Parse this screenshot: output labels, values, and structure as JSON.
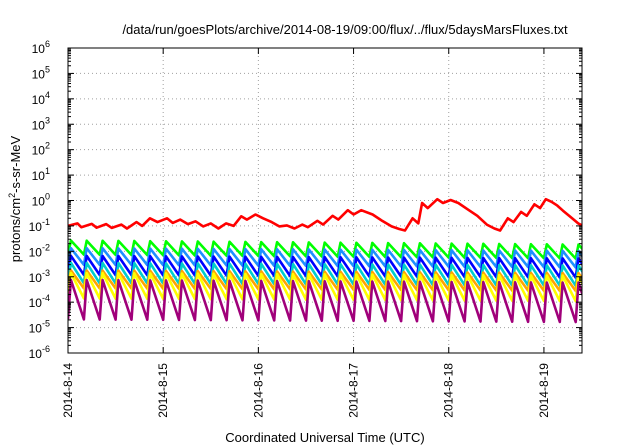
{
  "chart_data": {
    "type": "line",
    "title": "/data/run/goesPlots/archive/2014-08-19/09:00/flux/../flux/5daysMarsFluxes.txt",
    "xlabel": "Coordinated Universal Time (UTC)",
    "ylabel": "protons/cm²-s-sr-MeV",
    "ylabel_base": "protons/cm",
    "ylabel_sup": "2",
    "ylabel_rest": "-s-sr-MeV",
    "x_ticks": [
      "2014-8-14",
      "2014-8-15",
      "2014-8-16",
      "2014-8-17",
      "2014-8-18",
      "2014-8-19"
    ],
    "y_ticks": [
      {
        "exp": -6,
        "label": "10",
        "sup": "-6"
      },
      {
        "exp": -5,
        "label": "10",
        "sup": "-5"
      },
      {
        "exp": -4,
        "label": "10",
        "sup": "-4"
      },
      {
        "exp": -3,
        "label": "10",
        "sup": "-3"
      },
      {
        "exp": -2,
        "label": "10",
        "sup": "-2"
      },
      {
        "exp": -1,
        "label": "10",
        "sup": "-1"
      },
      {
        "exp": 0,
        "label": "10",
        "sup": "0"
      },
      {
        "exp": 1,
        "label": "10",
        "sup": "1"
      },
      {
        "exp": 2,
        "label": "10",
        "sup": "2"
      },
      {
        "exp": 3,
        "label": "10",
        "sup": "3"
      },
      {
        "exp": 4,
        "label": "10",
        "sup": "4"
      },
      {
        "exp": 5,
        "label": "10",
        "sup": "5"
      },
      {
        "exp": 6,
        "label": "10",
        "sup": "6"
      }
    ],
    "xlim_days": [
      0,
      5.4
    ],
    "ylim_log10": [
      -6,
      6
    ],
    "y_scale": "log",
    "grid": true,
    "legend": "none",
    "series": [
      {
        "color": "#ff0000",
        "log_flux": [
          [
            0.0,
            -1.0
          ],
          [
            0.1,
            -0.9
          ],
          [
            0.14,
            -1.05
          ],
          [
            0.25,
            -0.92
          ],
          [
            0.3,
            -1.07
          ],
          [
            0.4,
            -0.93
          ],
          [
            0.46,
            -1.08
          ],
          [
            0.56,
            -0.95
          ],
          [
            0.62,
            -1.1
          ],
          [
            0.72,
            -0.85
          ],
          [
            0.78,
            -1.0
          ],
          [
            0.86,
            -0.7
          ],
          [
            0.94,
            -0.85
          ],
          [
            1.04,
            -0.7
          ],
          [
            1.1,
            -0.88
          ],
          [
            1.18,
            -0.75
          ],
          [
            1.26,
            -0.93
          ],
          [
            1.34,
            -0.82
          ],
          [
            1.42,
            -1.02
          ],
          [
            1.5,
            -0.9
          ],
          [
            1.58,
            -1.1
          ],
          [
            1.66,
            -0.9
          ],
          [
            1.74,
            -1.0
          ],
          [
            1.82,
            -0.62
          ],
          [
            1.88,
            -0.75
          ],
          [
            1.97,
            -0.55
          ],
          [
            2.05,
            -0.7
          ],
          [
            2.14,
            -0.85
          ],
          [
            2.22,
            -1.02
          ],
          [
            2.3,
            -0.98
          ],
          [
            2.38,
            -1.1
          ],
          [
            2.46,
            -0.95
          ],
          [
            2.52,
            -1.05
          ],
          [
            2.62,
            -0.8
          ],
          [
            2.68,
            -0.95
          ],
          [
            2.78,
            -0.6
          ],
          [
            2.84,
            -0.75
          ],
          [
            2.94,
            -0.38
          ],
          [
            3.0,
            -0.55
          ],
          [
            3.08,
            -0.38
          ],
          [
            3.2,
            -0.55
          ],
          [
            3.3,
            -0.8
          ],
          [
            3.4,
            -1.02
          ],
          [
            3.48,
            -1.12
          ],
          [
            3.54,
            -1.18
          ],
          [
            3.62,
            -0.7
          ],
          [
            3.68,
            -0.9
          ],
          [
            3.72,
            -0.1
          ],
          [
            3.78,
            -0.3
          ],
          [
            3.88,
            0.05
          ],
          [
            3.94,
            -0.1
          ],
          [
            4.02,
            0.02
          ],
          [
            4.1,
            -0.1
          ],
          [
            4.2,
            -0.35
          ],
          [
            4.3,
            -0.6
          ],
          [
            4.4,
            -0.95
          ],
          [
            4.48,
            -1.1
          ],
          [
            4.54,
            -1.18
          ],
          [
            4.62,
            -0.7
          ],
          [
            4.68,
            -0.85
          ],
          [
            4.76,
            -0.45
          ],
          [
            4.82,
            -0.6
          ],
          [
            4.9,
            -0.15
          ],
          [
            4.96,
            -0.3
          ],
          [
            5.02,
            0.05
          ],
          [
            5.08,
            -0.05
          ],
          [
            5.14,
            -0.2
          ],
          [
            5.2,
            -0.4
          ],
          [
            5.28,
            -0.65
          ],
          [
            5.36,
            -0.9
          ],
          [
            5.44,
            -1.05
          ],
          [
            5.52,
            -1.08
          ],
          [
            5.56,
            -1.12
          ]
        ]
      },
      {
        "color": "#00ff00",
        "base": -1.85,
        "amplitude": 0.55,
        "trend": -0.03
      },
      {
        "color": "#1e90ff",
        "base": -2.2,
        "amplitude": 0.65,
        "trend": -0.02
      },
      {
        "color": "#0000ff",
        "base": -2.55,
        "amplitude": 0.75,
        "trend": -0.02
      },
      {
        "color": "#00cdcd",
        "base": -2.85,
        "amplitude": 0.8,
        "trend": -0.02
      },
      {
        "color": "#ffa500",
        "base": -3.1,
        "amplitude": 0.7,
        "trend": -0.02
      },
      {
        "color": "#ffff00",
        "base": -3.35,
        "amplitude": 1.0,
        "trend": -0.02
      },
      {
        "color": "#a0007a",
        "base": -3.9,
        "amplitude": 1.55,
        "trend": -0.02
      }
    ]
  }
}
